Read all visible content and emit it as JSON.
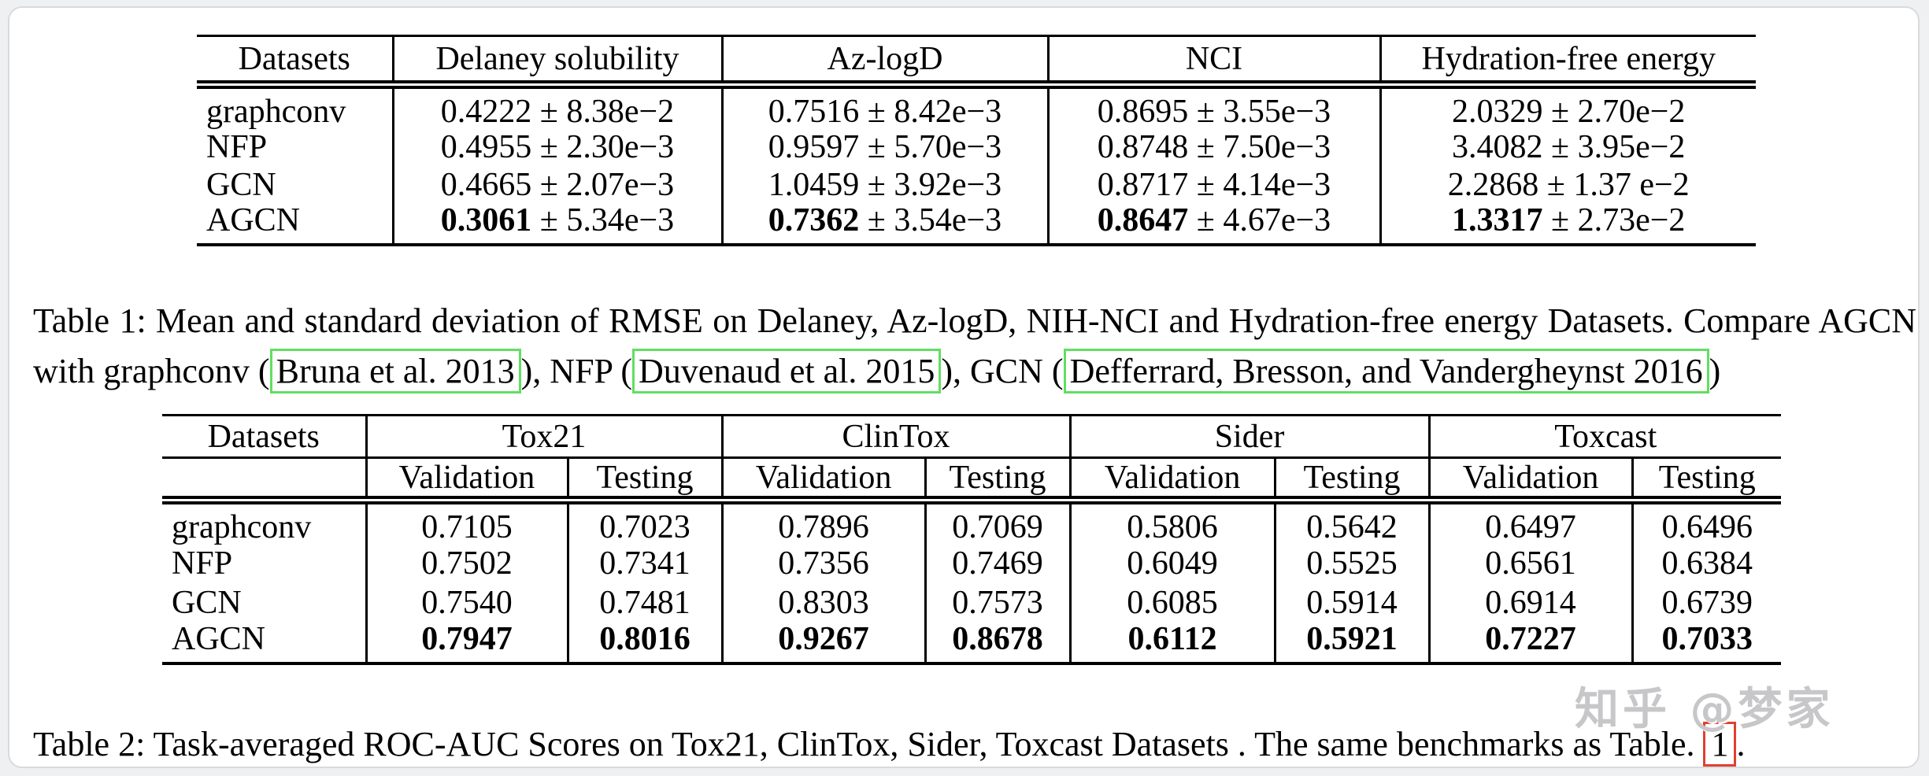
{
  "colors": {
    "citation_box": "#62de62",
    "reference_box": "#e0402f",
    "watermark_gray": "#c7c7c9"
  },
  "plus_minus": "±",
  "table1": {
    "headers": [
      "Datasets",
      "Delaney solubility",
      "Az-logD",
      "NCI",
      "Hydration-free energy"
    ],
    "rows": [
      {
        "label": "graphconv",
        "bold_mean": false,
        "cells": [
          [
            "0.4222",
            "8.38e−2"
          ],
          [
            "0.7516",
            "8.42e−3"
          ],
          [
            "0.8695",
            "3.55e−3"
          ],
          [
            "2.0329",
            "2.70e−2"
          ]
        ]
      },
      {
        "label": "NFP",
        "bold_mean": false,
        "cells": [
          [
            "0.4955",
            "2.30e−3"
          ],
          [
            "0.9597",
            "5.70e−3"
          ],
          [
            "0.8748",
            "7.50e−3"
          ],
          [
            "3.4082",
            "3.95e−2"
          ]
        ]
      },
      {
        "label": "GCN",
        "bold_mean": false,
        "cells": [
          [
            "0.4665",
            "2.07e−3"
          ],
          [
            "1.0459",
            "3.92e−3"
          ],
          [
            "0.8717",
            "4.14e−3"
          ],
          [
            "2.2868",
            "1.37 e−2"
          ]
        ]
      },
      {
        "label": "AGCN",
        "bold_mean": true,
        "cells": [
          [
            "0.3061",
            "5.34e−3"
          ],
          [
            "0.7362",
            "3.54e−3"
          ],
          [
            "0.8647",
            "4.67e−3"
          ],
          [
            "1.3317",
            "2.73e−2"
          ]
        ]
      }
    ]
  },
  "caption1": {
    "segments": [
      {
        "text": "Table 1: Mean and standard deviation of RMSE on Delaney, Az-logD, NIH-NCI and Hydration-free energy Datasets. Compare AGCN with graphconv (",
        "box": null
      },
      {
        "text": "Bruna et al. 2013",
        "box": "green"
      },
      {
        "text": "), NFP (",
        "box": null
      },
      {
        "text": "Duvenaud et al. 2015",
        "box": "green"
      },
      {
        "text": "), GCN (",
        "box": null
      },
      {
        "text": "Defferrard, Bresson, and Vandergheynst 2016",
        "box": "green"
      },
      {
        "text": ")",
        "box": null
      }
    ]
  },
  "table2": {
    "corner_header": "Datasets",
    "groups": [
      "Tox21",
      "ClinTox",
      "Sider",
      "Toxcast"
    ],
    "subheaders": [
      "Validation",
      "Testing"
    ],
    "rows": [
      {
        "label": "graphconv",
        "bold": false,
        "values": [
          "0.7105",
          "0.7023",
          "0.7896",
          "0.7069",
          "0.5806",
          "0.5642",
          "0.6497",
          "0.6496"
        ]
      },
      {
        "label": "NFP",
        "bold": false,
        "values": [
          "0.7502",
          "0.7341",
          "0.7356",
          "0.7469",
          "0.6049",
          "0.5525",
          "0.6561",
          "0.6384"
        ]
      },
      {
        "label": "GCN",
        "bold": false,
        "values": [
          "0.7540",
          "0.7481",
          "0.8303",
          "0.7573",
          "0.6085",
          "0.5914",
          "0.6914",
          "0.6739"
        ]
      },
      {
        "label": "AGCN",
        "bold": true,
        "values": [
          "0.7947",
          "0.8016",
          "0.9267",
          "0.8678",
          "0.6112",
          "0.5921",
          "0.7227",
          "0.7033"
        ]
      }
    ]
  },
  "caption2": {
    "segments": [
      {
        "text": "Table 2: Task-averaged ROC-AUC Scores on Tox21, ClinTox, Sider, Toxcast Datasets . The same benchmarks as Table. ",
        "box": null
      },
      {
        "text": "1",
        "box": "red"
      },
      {
        "text": ".",
        "box": null
      }
    ]
  },
  "watermark": "知乎 @梦家"
}
